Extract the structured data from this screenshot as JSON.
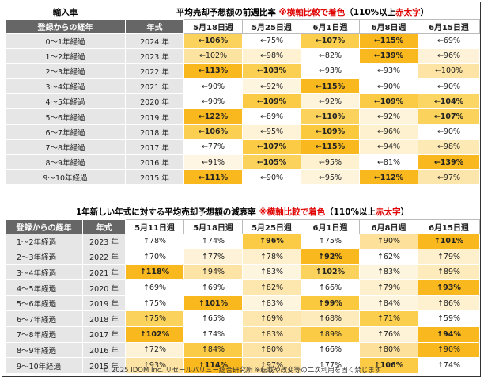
{
  "table1": {
    "corner": "輸入車",
    "title_main": "平均売却予想額の前週比率",
    "title_note": "※横軸比較で着色",
    "title_paren_open": "（110%以上",
    "title_red": "赤太字",
    "title_paren_close": "）",
    "headers": [
      "登録からの経年",
      "年式",
      "5月18日週",
      "5月25日週",
      "6月1日週",
      "6月8日週",
      "6月15日週"
    ],
    "rows": [
      {
        "age": "0～1年経過",
        "year": "2024 年",
        "cells": [
          {
            "t": "←106%",
            "bg": "#fbd25c",
            "s": "b"
          },
          {
            "t": "←75%",
            "bg": "#ffffff",
            "s": "g"
          },
          {
            "t": "←107%",
            "bg": "#fbce4d",
            "s": "b"
          },
          {
            "t": "←115%",
            "bg": "#f9b81e",
            "s": "red"
          },
          {
            "t": "←69%",
            "bg": "#ffffff",
            "s": "g"
          }
        ]
      },
      {
        "age": "1～2年経過",
        "year": "2023 年",
        "cells": [
          {
            "t": "←102%",
            "bg": "#fde3a0",
            "s": ""
          },
          {
            "t": "←98%",
            "bg": "#fef2d2",
            "s": ""
          },
          {
            "t": "←82%",
            "bg": "#ffffff",
            "s": "g"
          },
          {
            "t": "←139%",
            "bg": "#f9b81e",
            "s": "red"
          },
          {
            "t": "←96%",
            "bg": "#fef3d8",
            "s": ""
          }
        ]
      },
      {
        "age": "2～3年経過",
        "year": "2022 年",
        "cells": [
          {
            "t": "←113%",
            "bg": "#f9b81e",
            "s": "red"
          },
          {
            "t": "←103%",
            "bg": "#fbcf52",
            "s": "b"
          },
          {
            "t": "←93%",
            "bg": "#ffffff",
            "s": ""
          },
          {
            "t": "←93%",
            "bg": "#ffffff",
            "s": ""
          },
          {
            "t": "←100%",
            "bg": "#fde4a4",
            "s": ""
          }
        ]
      },
      {
        "age": "3～4年経過",
        "year": "2021 年",
        "cells": [
          {
            "t": "←90%",
            "bg": "#ffffff",
            "s": "g"
          },
          {
            "t": "←92%",
            "bg": "#fef5df",
            "s": ""
          },
          {
            "t": "←115%",
            "bg": "#f9b81e",
            "s": "red"
          },
          {
            "t": "←90%",
            "bg": "#ffffff",
            "s": "g"
          },
          {
            "t": "←90%",
            "bg": "#ffffff",
            "s": "g"
          }
        ]
      },
      {
        "age": "4～5年経過",
        "year": "2020 年",
        "cells": [
          {
            "t": "←90%",
            "bg": "#ffffff",
            "s": ""
          },
          {
            "t": "←109%",
            "bg": "#fbcb45",
            "s": "b"
          },
          {
            "t": "←92%",
            "bg": "#fef4dc",
            "s": ""
          },
          {
            "t": "←109%",
            "bg": "#fbcb45",
            "s": "b"
          },
          {
            "t": "←104%",
            "bg": "#fbd664",
            "s": "b"
          }
        ]
      },
      {
        "age": "5～6年経過",
        "year": "2019 年",
        "cells": [
          {
            "t": "←122%",
            "bg": "#f9b81e",
            "s": "red"
          },
          {
            "t": "←89%",
            "bg": "#ffffff",
            "s": "g"
          },
          {
            "t": "←110%",
            "bg": "#fbd25c",
            "s": "b"
          },
          {
            "t": "←92%",
            "bg": "#fef4dc",
            "s": ""
          },
          {
            "t": "←107%",
            "bg": "#fbd25c",
            "s": "b"
          }
        ]
      },
      {
        "age": "6～7年経過",
        "year": "2018 年",
        "cells": [
          {
            "t": "←106%",
            "bg": "#fbcf52",
            "s": "b"
          },
          {
            "t": "←95%",
            "bg": "#fef3d6",
            "s": ""
          },
          {
            "t": "←109%",
            "bg": "#fbc93e",
            "s": "b"
          },
          {
            "t": "←96%",
            "bg": "#fef1cf",
            "s": ""
          },
          {
            "t": "←90%",
            "bg": "#ffffff",
            "s": ""
          }
        ]
      },
      {
        "age": "7～8年経過",
        "year": "2017 年",
        "cells": [
          {
            "t": "←77%",
            "bg": "#ffffff",
            "s": "g"
          },
          {
            "t": "←107%",
            "bg": "#fbcb45",
            "s": "b"
          },
          {
            "t": "←115%",
            "bg": "#f9b81e",
            "s": "red"
          },
          {
            "t": "←94%",
            "bg": "#fef2d2",
            "s": ""
          },
          {
            "t": "←98%",
            "bg": "#fde9b4",
            "s": ""
          }
        ]
      },
      {
        "age": "8～9年経過",
        "year": "2016 年",
        "cells": [
          {
            "t": "←91%",
            "bg": "#fef6e2",
            "s": ""
          },
          {
            "t": "←105%",
            "bg": "#fbd25c",
            "s": "b"
          },
          {
            "t": "←95%",
            "bg": "#fef1cf",
            "s": ""
          },
          {
            "t": "←81%",
            "bg": "#ffffff",
            "s": "g"
          },
          {
            "t": "←139%",
            "bg": "#f9b81e",
            "s": "red"
          }
        ]
      },
      {
        "age": "9～10年経過",
        "year": "2015 年",
        "cells": [
          {
            "t": "←111%",
            "bg": "#f9b81e",
            "s": "red"
          },
          {
            "t": "←90%",
            "bg": "#ffffff",
            "s": "g"
          },
          {
            "t": "←95%",
            "bg": "#fef4dc",
            "s": ""
          },
          {
            "t": "←112%",
            "bg": "#f9b81e",
            "s": "red"
          },
          {
            "t": "←97%",
            "bg": "#fde6ab",
            "s": ""
          }
        ]
      }
    ]
  },
  "table2": {
    "title_main": "1年新しい年式に対する平均売却予想額の減衰率",
    "title_note": "※横軸比較で着色",
    "title_paren_open": "（110%以上",
    "title_red": "赤太字",
    "title_paren_close": "）",
    "headers": [
      "登録からの経年",
      "年式",
      "5月11日週",
      "5月18日週",
      "5月25日週",
      "6月1日週",
      "6月8日週",
      "6月15日週"
    ],
    "rows": [
      {
        "age": "1～2年経過",
        "year": "2023 年",
        "cells": [
          {
            "t": "↑78%",
            "bg": "#ffffff",
            "s": "g"
          },
          {
            "t": "↑74%",
            "bg": "#ffffff",
            "s": "g"
          },
          {
            "t": "↑96%",
            "bg": "#fbcb45",
            "s": "b"
          },
          {
            "t": "↑75%",
            "bg": "#ffffff",
            "s": "g"
          },
          {
            "t": "↑90%",
            "bg": "#fde09a",
            "s": ""
          },
          {
            "t": "↑101%",
            "bg": "#f9b81e",
            "s": "b"
          }
        ]
      },
      {
        "age": "2～3年経過",
        "year": "2022 年",
        "cells": [
          {
            "t": "↑70%",
            "bg": "#ffffff",
            "s": "g"
          },
          {
            "t": "↑77%",
            "bg": "#fef3d8",
            "s": "g"
          },
          {
            "t": "↑78%",
            "bg": "#fef0cc",
            "s": "g"
          },
          {
            "t": "↑92%",
            "bg": "#f9b81e",
            "s": "b"
          },
          {
            "t": "↑62%",
            "bg": "#ffffff",
            "s": "g"
          },
          {
            "t": "↑79%",
            "bg": "#fef0cc",
            "s": "g"
          }
        ]
      },
      {
        "age": "3～4年経過",
        "year": "2021 年",
        "cells": [
          {
            "t": "↑118%",
            "bg": "#f9b81e",
            "s": "red"
          },
          {
            "t": "↑94%",
            "bg": "#fde4a4",
            "s": ""
          },
          {
            "t": "↑83%",
            "bg": "#fef5df",
            "s": "g"
          },
          {
            "t": "↑102%",
            "bg": "#fbd25c",
            "s": "b"
          },
          {
            "t": "↑83%",
            "bg": "#fef5df",
            "s": "g"
          },
          {
            "t": "↑89%",
            "bg": "#fdebbb",
            "s": "g"
          }
        ]
      },
      {
        "age": "4～5年経過",
        "year": "2020 年",
        "cells": [
          {
            "t": "↑69%",
            "bg": "#ffffff",
            "s": "g"
          },
          {
            "t": "↑69%",
            "bg": "#ffffff",
            "s": "g"
          },
          {
            "t": "↑82%",
            "bg": "#fde7ae",
            "s": "g"
          },
          {
            "t": "↑66%",
            "bg": "#ffffff",
            "s": "g"
          },
          {
            "t": "↑79%",
            "bg": "#fef0cc",
            "s": "g"
          },
          {
            "t": "↑93%",
            "bg": "#f9b81e",
            "s": "b"
          }
        ]
      },
      {
        "age": "5～6年経過",
        "year": "2019 年",
        "cells": [
          {
            "t": "↑75%",
            "bg": "#ffffff",
            "s": "g"
          },
          {
            "t": "↑101%",
            "bg": "#f9b81e",
            "s": "b"
          },
          {
            "t": "↑83%",
            "bg": "#fef5df",
            "s": "g"
          },
          {
            "t": "↑99%",
            "bg": "#fbc93e",
            "s": "b"
          },
          {
            "t": "↑84%",
            "bg": "#fef5df",
            "s": "g"
          },
          {
            "t": "↑86%",
            "bg": "#fef1cf",
            "s": "g"
          }
        ]
      },
      {
        "age": "6～7年経過",
        "year": "2018 年",
        "cells": [
          {
            "t": "↑75%",
            "bg": "#fbd25c",
            "s": "g"
          },
          {
            "t": "↑65%",
            "bg": "#ffffff",
            "s": "g"
          },
          {
            "t": "↑69%",
            "bg": "#fde7ae",
            "s": "g"
          },
          {
            "t": "↑68%",
            "bg": "#fdebbb",
            "s": "g"
          },
          {
            "t": "↑71%",
            "bg": "#fbce4d",
            "s": "g"
          },
          {
            "t": "↑59%",
            "bg": "#ffffff",
            "s": "g"
          }
        ]
      },
      {
        "age": "7～8年経過",
        "year": "2017 年",
        "cells": [
          {
            "t": "↑102%",
            "bg": "#f9b81e",
            "s": "b"
          },
          {
            "t": "↑74%",
            "bg": "#ffffff",
            "s": "g"
          },
          {
            "t": "↑83%",
            "bg": "#fde4a4",
            "s": "g"
          },
          {
            "t": "↑89%",
            "bg": "#fbcb45",
            "s": "g"
          },
          {
            "t": "↑76%",
            "bg": "#fef3d6",
            "s": "g"
          },
          {
            "t": "↑94%",
            "bg": "#f9b81e",
            "s": "b"
          }
        ]
      },
      {
        "age": "8～9年経過",
        "year": "2016 年",
        "cells": [
          {
            "t": "↑72%",
            "bg": "#fef3d6",
            "s": "g"
          },
          {
            "t": "↑84%",
            "bg": "#fbcb45",
            "s": "g"
          },
          {
            "t": "↑80%",
            "bg": "#fde4a4",
            "s": "g"
          },
          {
            "t": "↑66%",
            "bg": "#ffffff",
            "s": "g"
          },
          {
            "t": "↑80%",
            "bg": "#fde09a",
            "s": "g"
          },
          {
            "t": "↑90%",
            "bg": "#f9b81e",
            "s": "g"
          }
        ]
      },
      {
        "age": "9～10年経過",
        "year": "2015 年",
        "cells": [
          {
            "t": "↑93%",
            "bg": "#fde4a4",
            "s": ""
          },
          {
            "t": "↑114%",
            "bg": "#f9b81e",
            "s": "red"
          },
          {
            "t": "↑97%",
            "bg": "#fde09a",
            "s": ""
          },
          {
            "t": "↑77%",
            "bg": "#ffffff",
            "s": "g"
          },
          {
            "t": "↑106%",
            "bg": "#fbcb45",
            "s": "b"
          },
          {
            "t": "↑74%",
            "bg": "#ffffff",
            "s": "g"
          }
        ]
      }
    ]
  },
  "footer": "© 2025 IDOM Inc. リセールバリュー総合研究所 ※転載や改変等の二次利用を固く禁じます"
}
